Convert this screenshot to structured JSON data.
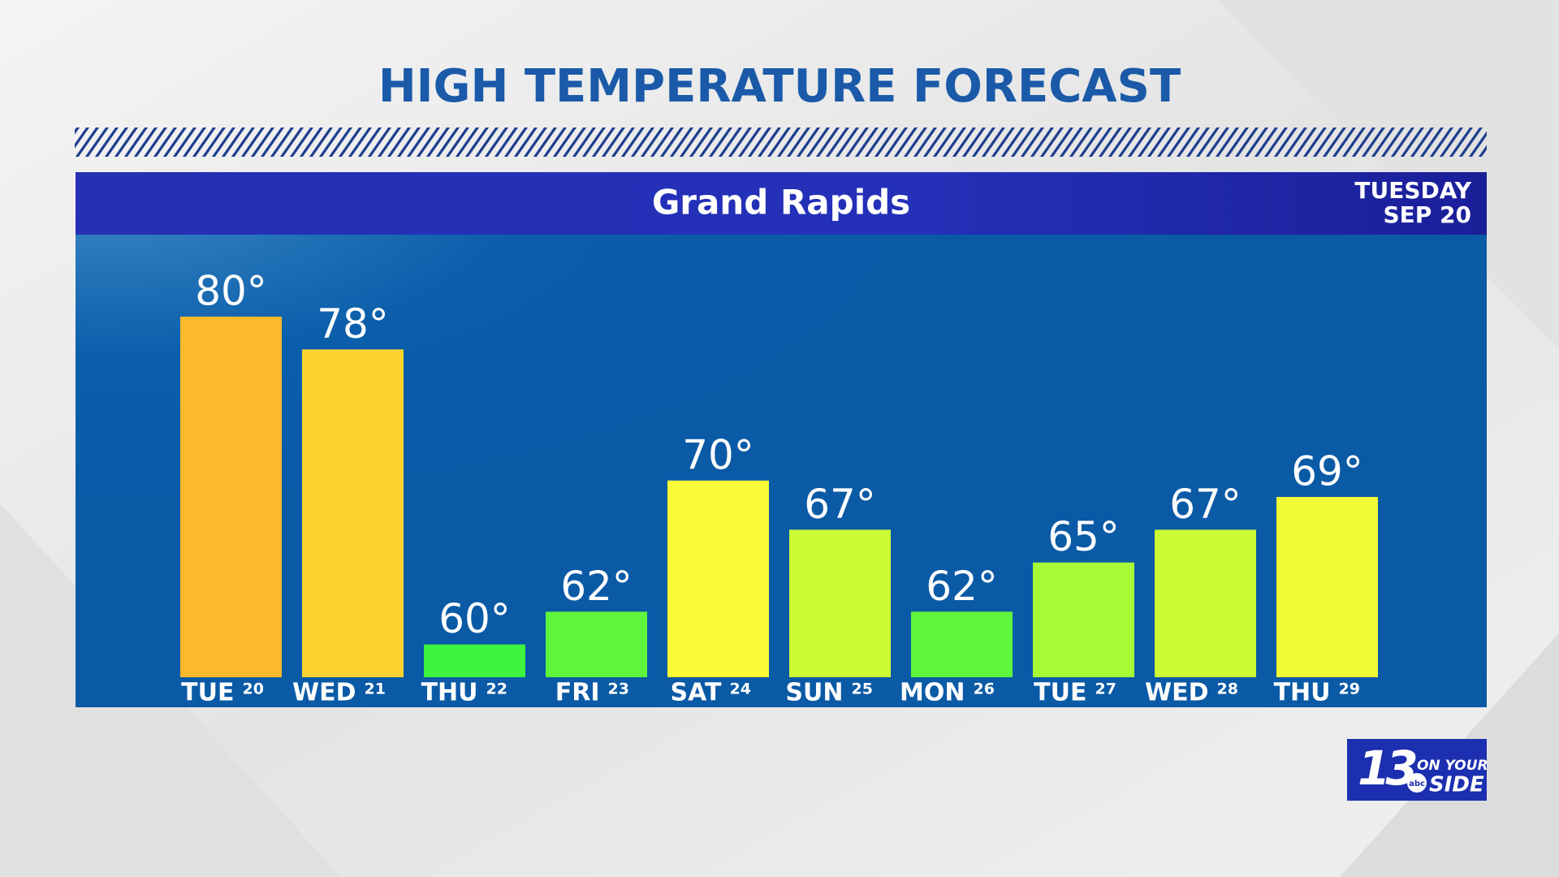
{
  "chart_data": {
    "type": "bar",
    "title": "HIGH TEMPERATURE FORECAST",
    "location": "Grand Rapids",
    "date_line1": "TUESDAY",
    "date_line2": "SEP 20",
    "categories": [
      "TUE",
      "WED",
      "THU",
      "FRI",
      "SAT",
      "SUN",
      "MON",
      "TUE",
      "WED",
      "THU"
    ],
    "dates": [
      "20",
      "21",
      "22",
      "23",
      "24",
      "25",
      "26",
      "27",
      "28",
      "29"
    ],
    "values": [
      80,
      78,
      60,
      62,
      70,
      67,
      62,
      65,
      67,
      69
    ],
    "value_labels": [
      "80°",
      "78°",
      "60°",
      "62°",
      "70°",
      "67°",
      "62°",
      "65°",
      "67°",
      "69°"
    ],
    "colors": [
      "#fdb92c",
      "#fdd332",
      "#3cf53c",
      "#5ef53c",
      "#f9fb36",
      "#ccfb36",
      "#5ef53c",
      "#a6fb36",
      "#ccfb36",
      "#f0fb36"
    ],
    "ylim": [
      58,
      85
    ],
    "logo": {
      "number": "13",
      "line1": "ON YOUR",
      "line2": "SIDE",
      "network": "abc"
    }
  }
}
